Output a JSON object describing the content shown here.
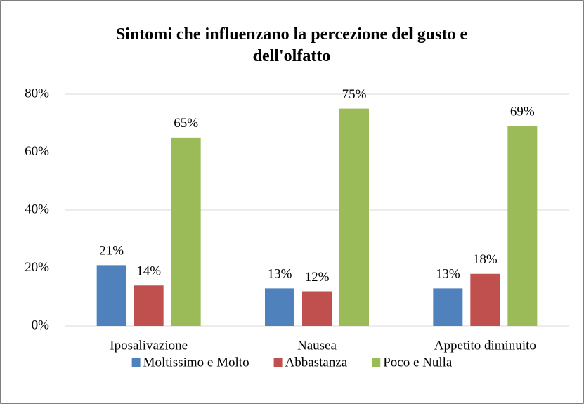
{
  "chart_data": {
    "type": "bar",
    "title": "Sintomi che influenzano la percezione del gusto e dell'olfatto",
    "categories": [
      "Iposalivazione",
      "Nausea",
      "Appetito diminuito"
    ],
    "series": [
      {
        "name": "Moltissimo e Molto",
        "color": "#4f81bd",
        "values": [
          21,
          13,
          13
        ],
        "value_labels": [
          "21%",
          "13%",
          "13%"
        ]
      },
      {
        "name": "Abbastanza",
        "color": "#c0504d",
        "values": [
          14,
          12,
          18
        ],
        "value_labels": [
          "14%",
          "12%",
          "18%"
        ]
      },
      {
        "name": "Poco e Nulla",
        "color": "#9bbb59",
        "values": [
          65,
          75,
          69
        ],
        "value_labels": [
          "65%",
          "75%",
          "69%"
        ]
      }
    ],
    "ylim": [
      0,
      80
    ],
    "yticks": [
      {
        "value": 0,
        "label": "0%"
      },
      {
        "value": 20,
        "label": "20%"
      },
      {
        "value": 40,
        "label": "40%"
      },
      {
        "value": 60,
        "label": "60%"
      },
      {
        "value": 80,
        "label": "80%"
      }
    ],
    "grid": true,
    "legend": "bottom"
  }
}
